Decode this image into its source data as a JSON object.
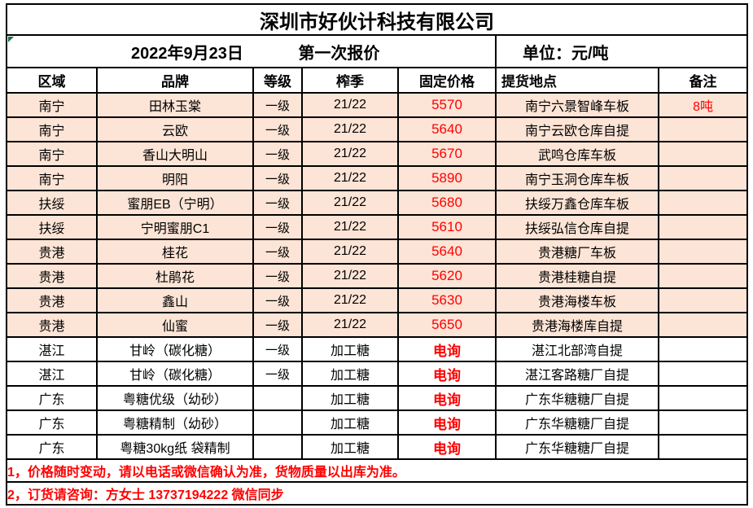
{
  "title": "深圳市好伙计科技有限公司",
  "subheader": {
    "date": "2022年9月23日",
    "round": "第一次报价",
    "unit": "单位：元/吨"
  },
  "columns": [
    "区域",
    "品牌",
    "等级",
    "榨季",
    "固定价格",
    "提货地点",
    "备注"
  ],
  "rows": [
    {
      "region": "南宁",
      "brand": "田林玉棠",
      "grade": "一级",
      "season": "21/22",
      "price": "5570",
      "location": "南宁六景智峰车板",
      "remark": "8吨"
    },
    {
      "region": "南宁",
      "brand": "云欧",
      "grade": "一级",
      "season": "21/22",
      "price": "5640",
      "location": "南宁云欧仓库自提",
      "remark": ""
    },
    {
      "region": "南宁",
      "brand": "香山大明山",
      "grade": "一级",
      "season": "21/22",
      "price": "5670",
      "location": "武鸣仓库车板",
      "remark": ""
    },
    {
      "region": "南宁",
      "brand": "明阳",
      "grade": "一级",
      "season": "21/22",
      "price": "5890",
      "location": "南宁玉洞仓库车板",
      "remark": ""
    },
    {
      "region": "扶绥",
      "brand": "蜜朋EB（宁明）",
      "grade": "一级",
      "season": "21/22",
      "price": "5680",
      "location": "扶绥万鑫仓库车板",
      "remark": ""
    },
    {
      "region": "扶绥",
      "brand": "宁明蜜朋C1",
      "grade": "一级",
      "season": "21/22",
      "price": "5610",
      "location": "扶绥弘信仓库自提",
      "remark": ""
    },
    {
      "region": "贵港",
      "brand": "桂花",
      "grade": "一级",
      "season": "21/22",
      "price": "5640",
      "location": "贵港糖厂车板",
      "remark": ""
    },
    {
      "region": "贵港",
      "brand": "杜鹃花",
      "grade": "一级",
      "season": "21/22",
      "price": "5620",
      "location": "贵港桂糖自提",
      "remark": ""
    },
    {
      "region": "贵港",
      "brand": "鑫山",
      "grade": "一级",
      "season": "21/22",
      "price": "5630",
      "location": "贵港海楼车板",
      "remark": ""
    },
    {
      "region": "贵港",
      "brand": "仙蜜",
      "grade": "一级",
      "season": "21/22",
      "price": "5650",
      "location": "贵港海楼库自提",
      "remark": ""
    },
    {
      "region": "湛江",
      "brand": "甘岭（碳化糖）",
      "grade": "一级",
      "season": "加工糖",
      "price": "电询",
      "location": "湛江北部湾自提",
      "remark": ""
    },
    {
      "region": "湛江",
      "brand": "甘岭（碳化糖）",
      "grade": "一级",
      "season": "加工糖",
      "price": "电询",
      "location": "湛江客路糖厂自提",
      "remark": ""
    },
    {
      "region": "广东",
      "brand": "粤糖优级（幼砂）",
      "grade": "",
      "season": "加工糖",
      "price": "电询",
      "location": "广东华糖糖厂自提",
      "remark": ""
    },
    {
      "region": "广东",
      "brand": "粤糖精制（幼砂）",
      "grade": "",
      "season": "加工糖",
      "price": "电询",
      "location": "广东华糖糖厂自提",
      "remark": ""
    },
    {
      "region": "广东",
      "brand": "粤糖30kg纸 袋精制",
      "grade": "",
      "season": "加工糖",
      "price": "电询",
      "location": "广东华糖糖厂自提",
      "remark": ""
    }
  ],
  "notes": [
    "1，价格随时变动，请以电话或微信确认为准，货物质量以出库为准。",
    "2，订货请咨询：方女士 13737194222   微信同步"
  ],
  "colors": {
    "highlight_bg": "#FCE4D6",
    "accent_red": "#FF0000",
    "border": "#000000",
    "error_indicator_green": "#1E7145"
  }
}
